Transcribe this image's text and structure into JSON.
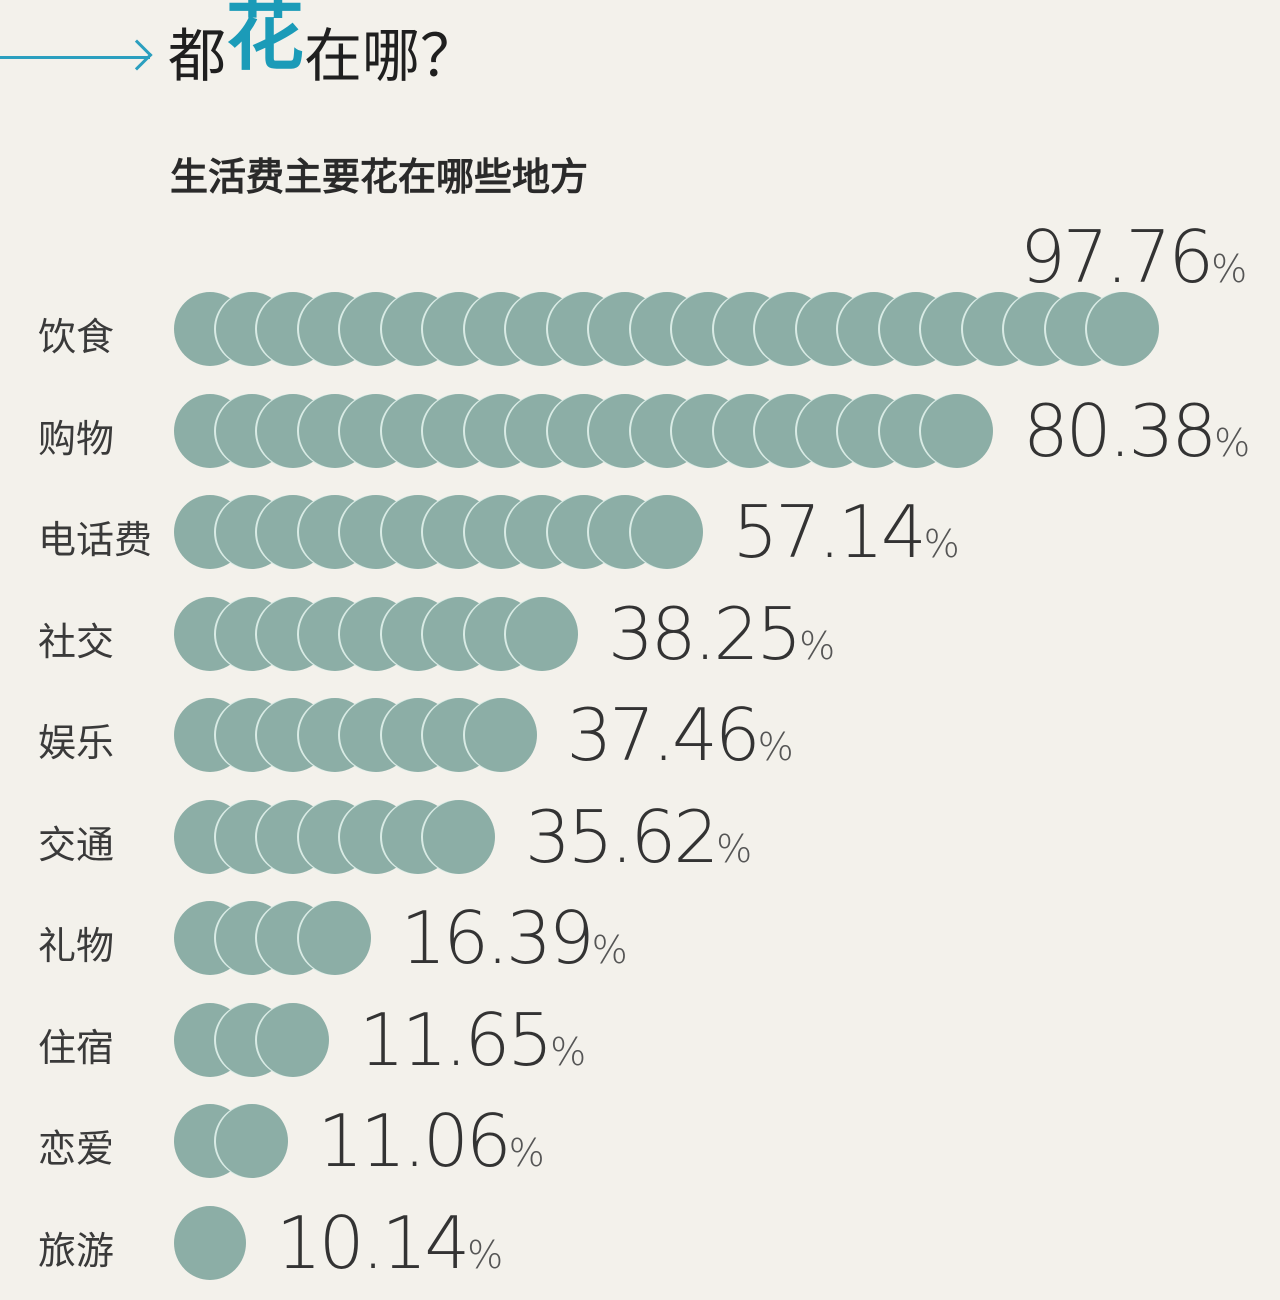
{
  "header": {
    "title_pre": "都",
    "title_highlight": "花",
    "title_post": "在哪？",
    "subtitle": "生活费主要花在哪些地方"
  },
  "colors": {
    "accent": "#1b9bb8",
    "arrow": "#2b9fbf",
    "dot": "#8caea6",
    "background": "#f3f1eb"
  },
  "chart_data": {
    "type": "bar",
    "title": "生活费主要花在哪些地方",
    "unit": "%",
    "categories": [
      "饮食",
      "购物",
      "电话费",
      "社交",
      "娱乐",
      "交通",
      "礼物",
      "住宿",
      "恋爱",
      "旅游"
    ],
    "values": [
      97.76,
      80.38,
      57.14,
      38.25,
      37.46,
      35.62,
      16.39,
      11.65,
      11.06,
      10.14
    ],
    "dot_counts": [
      23,
      19,
      12,
      9,
      8,
      7,
      4,
      3,
      2,
      1
    ],
    "labels": [
      "97.76",
      "80.38",
      "57.14",
      "38.25",
      "37.46",
      "35.62",
      "16.39",
      "11.65",
      "11.06",
      "10.14"
    ],
    "orientation": "horizontal",
    "xlabel": "",
    "ylabel": "",
    "grid": false,
    "legend": false
  }
}
